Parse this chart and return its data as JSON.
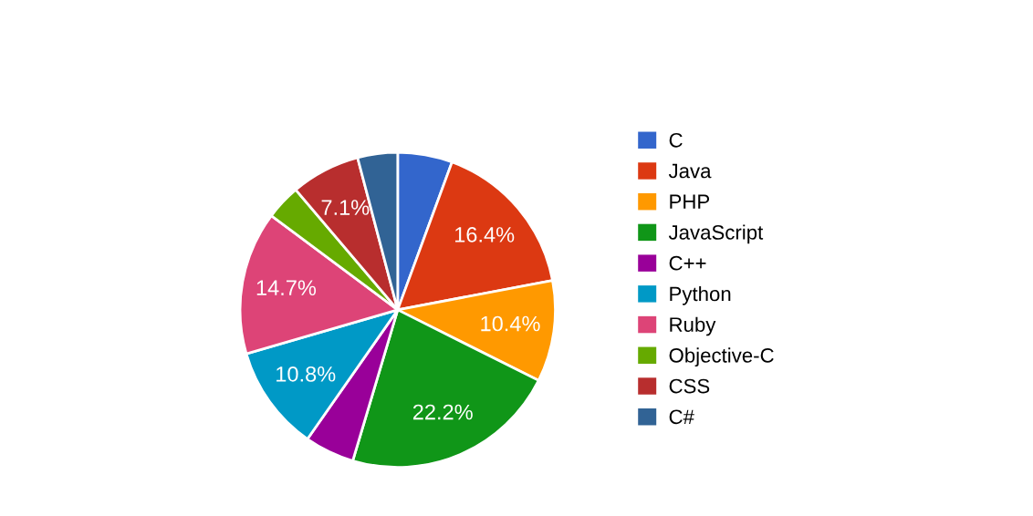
{
  "chart_data": {
    "type": "pie",
    "categories": [
      "C",
      "Java",
      "PHP",
      "JavaScript",
      "C++",
      "Python",
      "Ruby",
      "Objective-C",
      "CSS",
      "C#"
    ],
    "values": [
      5.6,
      16.4,
      10.4,
      22.2,
      5.1,
      10.8,
      14.7,
      3.6,
      7.1,
      4.1
    ],
    "value_labels": [
      null,
      "16.4%",
      "10.4%",
      "22.2%",
      null,
      "10.8%",
      "14.7%",
      null,
      "7.1%",
      null
    ],
    "colors": [
      "#3366cc",
      "#dc3912",
      "#ff9900",
      "#109618",
      "#990099",
      "#0099c6",
      "#dd4477",
      "#66aa00",
      "#b82e2e",
      "#316395"
    ],
    "legend": "right"
  }
}
